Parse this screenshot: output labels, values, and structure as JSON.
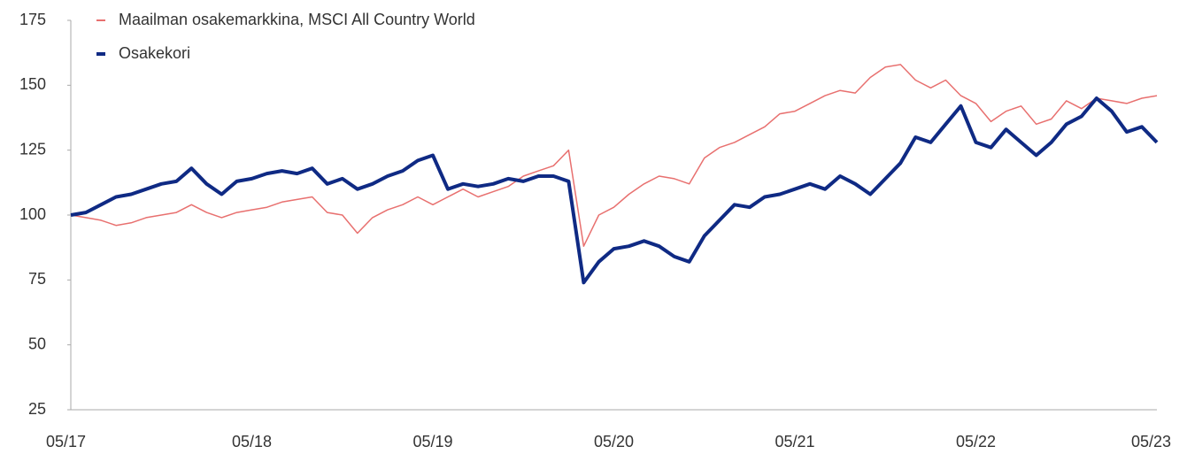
{
  "chart_data": {
    "type": "line",
    "categories": [
      "05/17",
      null,
      null,
      null,
      null,
      null,
      null,
      null,
      null,
      null,
      null,
      null,
      "05/18",
      null,
      null,
      null,
      null,
      null,
      null,
      null,
      null,
      null,
      null,
      null,
      "05/19",
      null,
      null,
      null,
      null,
      null,
      null,
      null,
      null,
      null,
      null,
      null,
      "05/20",
      null,
      null,
      null,
      null,
      null,
      null,
      null,
      null,
      null,
      null,
      null,
      "05/21",
      null,
      null,
      null,
      null,
      null,
      null,
      null,
      null,
      null,
      null,
      null,
      "05/22",
      null,
      null,
      null,
      null,
      null,
      null,
      null,
      null,
      null,
      null,
      null,
      "05/23"
    ],
    "series": [
      {
        "name": "Maailman osakemarkkina, MSCI All Country World",
        "color": "#e8706f",
        "values": [
          100,
          99,
          98,
          96,
          97,
          99,
          100,
          101,
          104,
          101,
          99,
          101,
          102,
          103,
          105,
          106,
          107,
          101,
          100,
          93,
          99,
          102,
          104,
          107,
          104,
          107,
          110,
          107,
          109,
          111,
          115,
          117,
          119,
          125,
          88,
          100,
          103,
          108,
          112,
          115,
          114,
          112,
          122,
          126,
          128,
          131,
          134,
          139,
          140,
          143,
          146,
          148,
          147,
          153,
          157,
          158,
          152,
          149,
          152,
          146,
          143,
          136,
          140,
          142,
          135,
          137,
          144,
          141,
          145,
          144,
          143,
          145,
          146
        ]
      },
      {
        "name": "Osakekori",
        "color": "#0f2a84",
        "values": [
          100,
          101,
          104,
          107,
          108,
          110,
          112,
          113,
          118,
          112,
          108,
          113,
          114,
          116,
          117,
          116,
          118,
          112,
          114,
          110,
          112,
          115,
          117,
          121,
          123,
          110,
          112,
          111,
          112,
          114,
          113,
          115,
          115,
          113,
          74,
          82,
          87,
          88,
          90,
          88,
          84,
          82,
          92,
          98,
          104,
          103,
          107,
          108,
          110,
          112,
          110,
          115,
          112,
          108,
          114,
          120,
          130,
          128,
          135,
          142,
          128,
          126,
          133,
          128,
          123,
          128,
          135,
          138,
          145,
          140,
          132,
          134,
          128
        ]
      }
    ],
    "ylim": [
      25,
      175
    ],
    "yticks": [
      25,
      50,
      75,
      100,
      125,
      150,
      175
    ]
  }
}
